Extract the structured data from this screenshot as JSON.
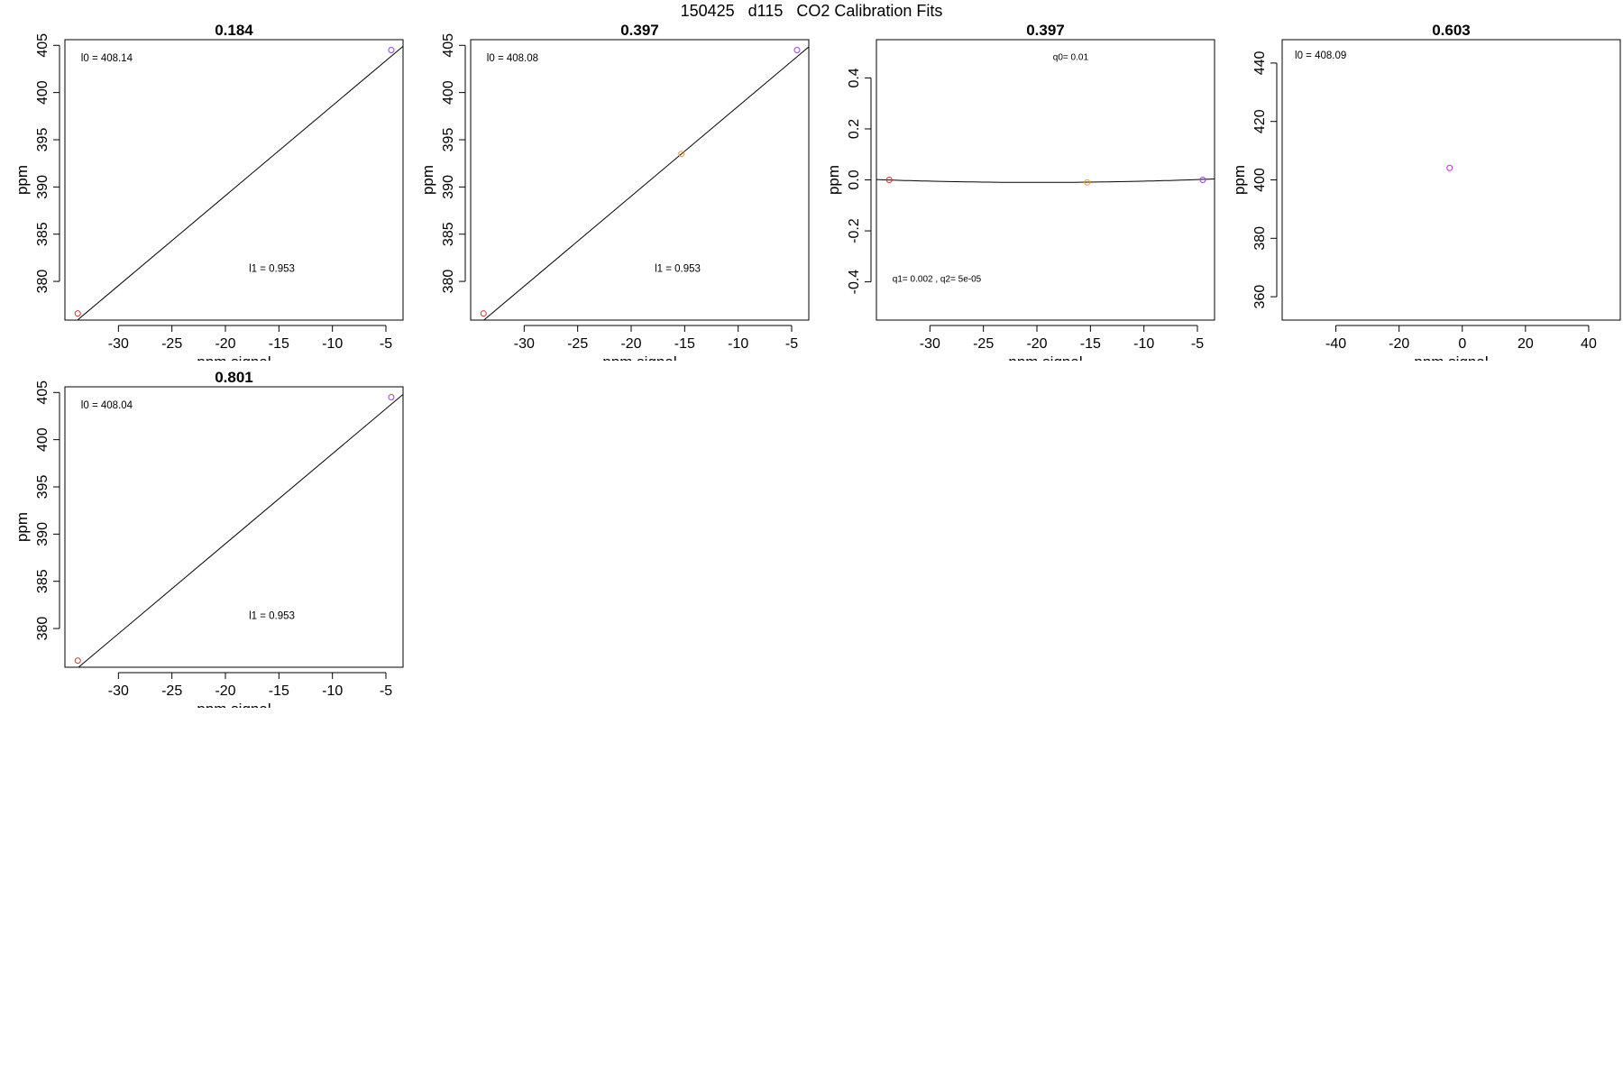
{
  "page": {
    "title": "150425   d115   CO2 Calibration Fits"
  },
  "colors": {
    "axis": "#000000",
    "fit_line": "#000000",
    "point_red": "#e0302a",
    "point_orange": "#f59a1e",
    "point_purple": "#9b3fe0",
    "point_magenta": "#c12fd6"
  },
  "chart_data": [
    {
      "type": "scatter",
      "title": "0.184",
      "xlabel": "ppm signal",
      "ylabel": "ppm",
      "xlim": [
        -35,
        -3.4
      ],
      "ylim": [
        375.9,
        405.6
      ],
      "xticks": [
        "-30",
        "-25",
        "-20",
        "-15",
        "-10",
        "-5"
      ],
      "yticks": [
        "380",
        "385",
        "390",
        "395",
        "400",
        "405"
      ],
      "points": [
        {
          "x": -33.8,
          "y": 376.6,
          "color": "#e0302a"
        },
        {
          "x": -4.5,
          "y": 404.5,
          "color": "#9b3fe0"
        }
      ],
      "fit": {
        "kind": "linear",
        "intercept": 408.14,
        "slope": 0.953
      },
      "annotations": [
        {
          "text": "l0 =  408.14",
          "ax": -33.5,
          "ay": 403.3
        },
        {
          "text": "l1 =  0.953",
          "ax": -17.8,
          "ay": 381.0
        }
      ]
    },
    {
      "type": "scatter",
      "title": "0.397",
      "xlabel": "ppm signal",
      "ylabel": "ppm",
      "xlim": [
        -35,
        -3.4
      ],
      "ylim": [
        375.9,
        405.6
      ],
      "xticks": [
        "-30",
        "-25",
        "-20",
        "-15",
        "-10",
        "-5"
      ],
      "yticks": [
        "380",
        "385",
        "390",
        "395",
        "400",
        "405"
      ],
      "points": [
        {
          "x": -33.8,
          "y": 376.6,
          "color": "#e0302a"
        },
        {
          "x": -15.3,
          "y": 393.5,
          "color": "#f59a1e"
        },
        {
          "x": -4.5,
          "y": 404.5,
          "color": "#9b3fe0"
        }
      ],
      "fit": {
        "kind": "linear",
        "intercept": 408.08,
        "slope": 0.953
      },
      "annotations": [
        {
          "text": "l0 =  408.08",
          "ax": -33.5,
          "ay": 403.3
        },
        {
          "text": "l1 =  0.953",
          "ax": -17.8,
          "ay": 381.0
        }
      ]
    },
    {
      "type": "scatter",
      "title": "0.397",
      "xlabel": "ppm signal",
      "ylabel": "ppm",
      "xlim": [
        -35,
        -3.4
      ],
      "ylim": [
        -0.55,
        0.55
      ],
      "xticks": [
        "-30",
        "-25",
        "-20",
        "-15",
        "-10",
        "-5"
      ],
      "yticks": [
        "-0.4",
        "-0.2",
        "0.0",
        "0.2",
        "0.4"
      ],
      "points": [
        {
          "x": -33.8,
          "y": 0.0,
          "color": "#e0302a"
        },
        {
          "x": -15.3,
          "y": -0.01,
          "color": "#f59a1e"
        },
        {
          "x": -4.5,
          "y": 0.0,
          "color": "#9b3fe0"
        }
      ],
      "fit": {
        "kind": "quadratic",
        "q0": 0.01,
        "q1": 0.002,
        "q2": 5e-05
      },
      "annotations": [
        {
          "text": "q0= 0.01",
          "ax": -18.5,
          "ay": 0.47
        },
        {
          "text": "q1= 0.002 , q2= 5e-05",
          "ax": -33.5,
          "ay": -0.4
        }
      ]
    },
    {
      "type": "scatter",
      "title": "0.603",
      "xlabel": "ppm signal",
      "ylabel": "ppm",
      "xlim": [
        -57,
        50
      ],
      "ylim": [
        352,
        448
      ],
      "xticks": [
        "-40",
        "-20",
        "0",
        "20",
        "40"
      ],
      "yticks": [
        "360",
        "380",
        "400",
        "420",
        "440"
      ],
      "points": [
        {
          "x": -4,
          "y": 404.1,
          "color": "#c12fd6"
        }
      ],
      "annotations": [
        {
          "text": "l0 =  408.09",
          "ax": -53,
          "ay": 441.5
        }
      ]
    },
    {
      "type": "scatter",
      "title": "0.801",
      "xlabel": "ppm signal",
      "ylabel": "ppm",
      "xlim": [
        -35,
        -3.4
      ],
      "ylim": [
        375.9,
        405.6
      ],
      "xticks": [
        "-30",
        "-25",
        "-20",
        "-15",
        "-10",
        "-5"
      ],
      "yticks": [
        "380",
        "385",
        "390",
        "395",
        "400",
        "405"
      ],
      "points": [
        {
          "x": -33.8,
          "y": 376.6,
          "color": "#e0302a"
        },
        {
          "x": -4.5,
          "y": 404.5,
          "color": "#9b3fe0"
        }
      ],
      "fit": {
        "kind": "linear",
        "intercept": 408.04,
        "slope": 0.953
      },
      "annotations": [
        {
          "text": "l0 =  408.04",
          "ax": -33.5,
          "ay": 403.3
        },
        {
          "text": "l1 =  0.953",
          "ax": -17.8,
          "ay": 381.0
        }
      ]
    }
  ]
}
